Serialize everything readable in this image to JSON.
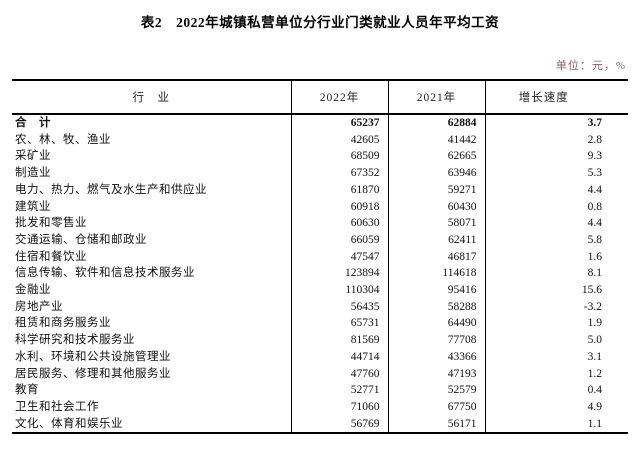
{
  "title": "表2　2022年城镇私营单位分行业门类就业人员年平均工资",
  "unit_note": "单位：元，%",
  "colors": {
    "unit_note_text": "#8d5f5f",
    "table_border": "#000000",
    "body_text": "#111111"
  },
  "table": {
    "columns": [
      "行　业",
      "2022年",
      "2021年",
      "增长速度"
    ],
    "rows": [
      {
        "industry": "合　计",
        "y2022": "65237",
        "y2021": "62884",
        "growth": "3.7",
        "bold": true
      },
      {
        "industry": "农、林、牧、渔业",
        "y2022": "42605",
        "y2021": "41442",
        "growth": "2.8",
        "bold": false
      },
      {
        "industry": "采矿业",
        "y2022": "68509",
        "y2021": "62665",
        "growth": "9.3",
        "bold": false
      },
      {
        "industry": "制造业",
        "y2022": "67352",
        "y2021": "63946",
        "growth": "5.3",
        "bold": false
      },
      {
        "industry": "电力、热力、燃气及水生产和供应业",
        "y2022": "61870",
        "y2021": "59271",
        "growth": "4.4",
        "bold": false
      },
      {
        "industry": "建筑业",
        "y2022": "60918",
        "y2021": "60430",
        "growth": "0.8",
        "bold": false
      },
      {
        "industry": "批发和零售业",
        "y2022": "60630",
        "y2021": "58071",
        "growth": "4.4",
        "bold": false
      },
      {
        "industry": "交通运输、仓储和邮政业",
        "y2022": "66059",
        "y2021": "62411",
        "growth": "5.8",
        "bold": false
      },
      {
        "industry": "住宿和餐饮业",
        "y2022": "47547",
        "y2021": "46817",
        "growth": "1.6",
        "bold": false
      },
      {
        "industry": "信息传输、软件和信息技术服务业",
        "y2022": "123894",
        "y2021": "114618",
        "growth": "8.1",
        "bold": false
      },
      {
        "industry": "金融业",
        "y2022": "110304",
        "y2021": "95416",
        "growth": "15.6",
        "bold": false
      },
      {
        "industry": "房地产业",
        "y2022": "56435",
        "y2021": "58288",
        "growth": "-3.2",
        "bold": false
      },
      {
        "industry": "租赁和商务服务业",
        "y2022": "65731",
        "y2021": "64490",
        "growth": "1.9",
        "bold": false
      },
      {
        "industry": "科学研究和技术服务业",
        "y2022": "81569",
        "y2021": "77708",
        "growth": "5.0",
        "bold": false
      },
      {
        "industry": "水利、环境和公共设施管理业",
        "y2022": "44714",
        "y2021": "43366",
        "growth": "3.1",
        "bold": false
      },
      {
        "industry": "居民服务、修理和其他服务业",
        "y2022": "47760",
        "y2021": "47193",
        "growth": "1.2",
        "bold": false
      },
      {
        "industry": "教育",
        "y2022": "52771",
        "y2021": "52579",
        "growth": "0.4",
        "bold": false
      },
      {
        "industry": "卫生和社会工作",
        "y2022": "71060",
        "y2021": "67750",
        "growth": "4.9",
        "bold": false
      },
      {
        "industry": "文化、体育和娱乐业",
        "y2022": "56769",
        "y2021": "56171",
        "growth": "1.1",
        "bold": false
      }
    ]
  }
}
